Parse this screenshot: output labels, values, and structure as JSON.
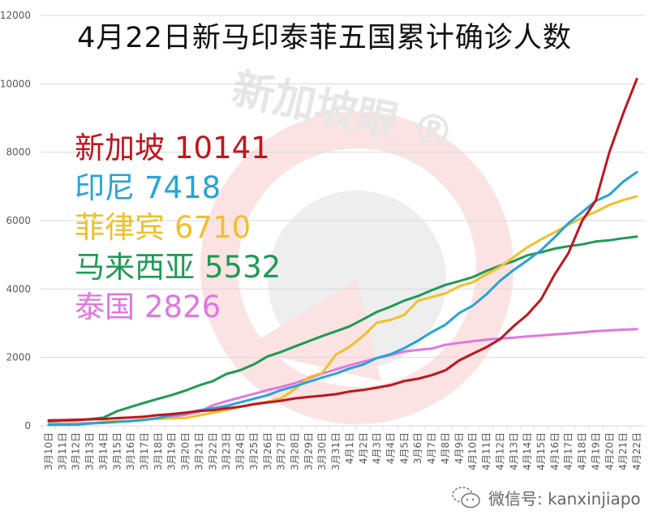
{
  "title": "4月22日新马印泰菲五国累计确诊人数",
  "watermark": {
    "text": "新加坡眼",
    "mark": "®"
  },
  "footer": {
    "icon": "wechat-icon",
    "label": "微信号: kanxinjiapo"
  },
  "legend": [
    {
      "name": "新加坡",
      "value": "10141",
      "color": "#c0151e"
    },
    {
      "name": "印尼",
      "value": "7418",
      "color": "#26a3d6"
    },
    {
      "name": "菲律宾",
      "value": "6710",
      "color": "#f0c02a"
    },
    {
      "name": "马来西亚",
      "value": "5532",
      "color": "#1f9a55"
    },
    {
      "name": "泰国",
      "value": "2826",
      "color": "#e077e0"
    }
  ],
  "chart_data": {
    "type": "line",
    "title": "4月22日新马印泰菲五国累计确诊人数",
    "xlabel": "",
    "ylabel": "",
    "ylim": [
      0,
      12000
    ],
    "yticks": [
      0,
      2000,
      4000,
      6000,
      8000,
      10000,
      12000
    ],
    "grid": true,
    "legend_position": "upper-left (inside plot)",
    "categories": [
      "3月10日",
      "3月11日",
      "3月12日",
      "3月13日",
      "3月14日",
      "3月15日",
      "3月16日",
      "3月17日",
      "3月18日",
      "3月19日",
      "3月20日",
      "3月21日",
      "3月22日",
      "3月23日",
      "3月24日",
      "3月25日",
      "3月26日",
      "3月27日",
      "3月28日",
      "3月29日",
      "3月30日",
      "3月31日",
      "4月1日",
      "4月2日",
      "4月3日",
      "4月4日",
      "4月5日",
      "3月6日",
      "4月7日",
      "4月8日",
      "4月9日",
      "4月10日",
      "4月11日",
      "4月12日",
      "4月13日",
      "4月14日",
      "4月15日",
      "4月16日",
      "4月17日",
      "4月18日",
      "4月19日",
      "4月20日",
      "4月21日",
      "4月22日"
    ],
    "series": [
      {
        "name": "新加坡",
        "color": "#c0151e",
        "values": [
          160,
          166,
          178,
          187,
          200,
          226,
          243,
          266,
          313,
          345,
          385,
          432,
          455,
          509,
          558,
          631,
          683,
          732,
          802,
          844,
          879,
          926,
          1000,
          1049,
          1114,
          1189,
          1309,
          1375,
          1481,
          1623,
          1910,
          2108,
          2299,
          2532,
          2918,
          3252,
          3699,
          4427,
          5050,
          5992,
          6588,
          8014,
          9125,
          10141
        ]
      },
      {
        "name": "印尼",
        "color": "#26a3d6",
        "values": [
          27,
          34,
          34,
          69,
          96,
          117,
          134,
          172,
          227,
          309,
          369,
          450,
          514,
          579,
          686,
          790,
          893,
          1046,
          1155,
          1285,
          1414,
          1528,
          1677,
          1790,
          1986,
          2092,
          2273,
          2491,
          2738,
          2956,
          3293,
          3512,
          3842,
          4241,
          4557,
          4839,
          5136,
          5516,
          5923,
          6248,
          6575,
          6760,
          7135,
          7418
        ]
      },
      {
        "name": "菲律宾",
        "color": "#f0c02a",
        "values": [
          33,
          49,
          52,
          64,
          111,
          140,
          142,
          187,
          202,
          217,
          230,
          307,
          380,
          462,
          552,
          636,
          707,
          803,
          1075,
          1418,
          1546,
          2084,
          2311,
          2633,
          3018,
          3094,
          3246,
          3660,
          3764,
          3870,
          4076,
          4195,
          4428,
          4648,
          4932,
          5223,
          5453,
          5660,
          5878,
          6087,
          6259,
          6459,
          6599,
          6710
        ]
      },
      {
        "name": "马来西亚",
        "color": "#1f9a55",
        "values": [
          129,
          149,
          158,
          197,
          238,
          428,
          553,
          673,
          790,
          900,
          1030,
          1183,
          1306,
          1518,
          1624,
          1796,
          2031,
          2161,
          2320,
          2470,
          2626,
          2766,
          2908,
          3116,
          3333,
          3483,
          3662,
          3793,
          3963,
          4119,
          4228,
          4346,
          4530,
          4683,
          4817,
          4987,
          5072,
          5182,
          5251,
          5305,
          5389,
          5425,
          5482,
          5532
        ]
      },
      {
        "name": "泰国",
        "color": "#e077e0",
        "values": [
          53,
          59,
          70,
          75,
          82,
          114,
          147,
          177,
          212,
          272,
          322,
          411,
          599,
          721,
          827,
          934,
          1045,
          1136,
          1245,
          1388,
          1524,
          1651,
          1771,
          1875,
          1978,
          2067,
          2169,
          2220,
          2258,
          2369,
          2423,
          2473,
          2518,
          2551,
          2579,
          2613,
          2643,
          2672,
          2700,
          2733,
          2765,
          2792,
          2811,
          2826
        ]
      }
    ]
  }
}
